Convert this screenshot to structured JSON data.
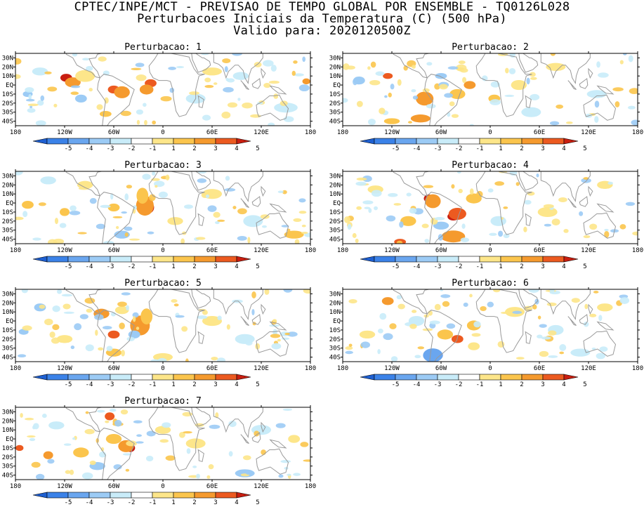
{
  "header": {
    "line1": "CPTEC/INPE/MCT - PREVISAO DE TEMPO GLOBAL POR ENSEMBLE - TQ0126L028",
    "line2": "Perturbacoes Iniciais da Temperatura (C) (500 hPa)",
    "line3": "Valido para: 2020120500Z"
  },
  "map_axes": {
    "lon_ticks": [
      "180",
      "120W",
      "60W",
      "0",
      "60E",
      "120E",
      "180"
    ],
    "lat_ticks": [
      "30N",
      "20N",
      "10N",
      "EQ",
      "10S",
      "20S",
      "30S",
      "40S"
    ]
  },
  "colorbar": {
    "labels": [
      "-5",
      "-4",
      "-3",
      "-2",
      "-1",
      "1",
      "2",
      "3",
      "4",
      "5"
    ],
    "colors": [
      "#1e5fd0",
      "#3b82e8",
      "#6aa6ef",
      "#9ccbf5",
      "#c9ecf9",
      "#ffffff",
      "#fde68a",
      "#fbc54d",
      "#f59a2e",
      "#ec5a20",
      "#c81e10"
    ]
  },
  "panels": [
    {
      "title": "Perturbacao: 1",
      "blobs": [
        [
          -118,
          8,
          6,
          4,
          "#c81e10"
        ],
        [
          -110,
          3,
          8,
          5,
          "#f59a2e"
        ],
        [
          -95,
          10,
          10,
          6,
          "#fde68a"
        ],
        [
          -60,
          -5,
          6,
          4,
          "#ec5a20"
        ],
        [
          -50,
          -8,
          8,
          6,
          "#f59a2e"
        ],
        [
          -15,
          2,
          6,
          4,
          "#ec5a20"
        ],
        [
          -20,
          -5,
          7,
          5,
          "#f59a2e"
        ],
        [
          -165,
          -10,
          5,
          3,
          "#9ccbf5"
        ],
        [
          -100,
          -15,
          6,
          4,
          "#9ccbf5"
        ],
        [
          175,
          4,
          4,
          3,
          "#f59a2e"
        ],
        [
          -70,
          -32,
          6,
          3,
          "#fbc54d"
        ],
        [
          40,
          -15,
          10,
          5,
          "#c9ecf9"
        ],
        [
          150,
          -25,
          12,
          5,
          "#c9ecf9"
        ],
        [
          -150,
          15,
          8,
          4,
          "#c9ecf9"
        ],
        [
          95,
          10,
          8,
          4,
          "#c9ecf9"
        ],
        [
          60,
          15,
          10,
          4,
          "#fde68a"
        ]
      ]
    },
    {
      "title": "Perturbacao: 2",
      "blobs": [
        [
          -125,
          10,
          5,
          3,
          "#ec5a20"
        ],
        [
          -80,
          -17,
          6,
          4,
          "#c81e10"
        ],
        [
          -80,
          -15,
          9,
          7,
          "#f59a2e"
        ],
        [
          -40,
          -10,
          8,
          5,
          "#fbc54d"
        ],
        [
          -25,
          0,
          6,
          4,
          "#f59a2e"
        ],
        [
          -85,
          -37,
          10,
          4,
          "#f59a2e"
        ],
        [
          -120,
          -40,
          8,
          3,
          "#fbc54d"
        ],
        [
          35,
          0,
          8,
          5,
          "#fde68a"
        ],
        [
          80,
          20,
          10,
          4,
          "#fde68a"
        ],
        [
          -160,
          5,
          6,
          4,
          "#9ccbf5"
        ],
        [
          50,
          -30,
          10,
          5,
          "#c9ecf9"
        ],
        [
          130,
          -10,
          10,
          4,
          "#c9ecf9"
        ],
        [
          -60,
          10,
          6,
          3,
          "#9ccbf5"
        ],
        [
          5,
          -15,
          6,
          4,
          "#fbc54d"
        ]
      ]
    },
    {
      "title": "Perturbacao: 3",
      "blobs": [
        [
          -18,
          -5,
          6,
          6,
          "#c81e10"
        ],
        [
          -22,
          -3,
          9,
          10,
          "#f59a2e"
        ],
        [
          -25,
          8,
          6,
          8,
          "#fbc54d"
        ],
        [
          -120,
          -10,
          5,
          4,
          "#fbc54d"
        ],
        [
          -165,
          -2,
          6,
          4,
          "#fbc54d"
        ],
        [
          -60,
          -5,
          6,
          4,
          "#fbc54d"
        ],
        [
          -50,
          -35,
          8,
          4,
          "#9ccbf5"
        ],
        [
          15,
          -20,
          8,
          4,
          "#fde68a"
        ],
        [
          60,
          10,
          10,
          5,
          "#fde68a"
        ],
        [
          -140,
          25,
          8,
          4,
          "#c9ecf9"
        ],
        [
          110,
          -20,
          10,
          6,
          "#c9ecf9"
        ],
        [
          160,
          -35,
          10,
          4,
          "#fbc54d"
        ],
        [
          -95,
          20,
          8,
          4,
          "#fde68a"
        ]
      ]
    },
    {
      "title": "Perturbacao: 4",
      "blobs": [
        [
          -75,
          5,
          5,
          4,
          "#c81e10"
        ],
        [
          -70,
          2,
          8,
          7,
          "#f59a2e"
        ],
        [
          -45,
          -15,
          6,
          4,
          "#c81e10"
        ],
        [
          -40,
          -12,
          9,
          6,
          "#ec5a20"
        ],
        [
          -50,
          -38,
          8,
          4,
          "#ec5a20"
        ],
        [
          -45,
          -37,
          12,
          6,
          "#f59a2e"
        ],
        [
          -110,
          -43,
          6,
          3,
          "#ec5a20"
        ],
        [
          -100,
          -20,
          8,
          5,
          "#fbc54d"
        ],
        [
          -140,
          15,
          8,
          4,
          "#fde68a"
        ],
        [
          -60,
          -25,
          8,
          4,
          "#9ccbf5"
        ],
        [
          10,
          -20,
          8,
          5,
          "#c9ecf9"
        ],
        [
          70,
          -10,
          10,
          5,
          "#fde68a"
        ],
        [
          140,
          20,
          8,
          4,
          "#fde68a"
        ],
        [
          -20,
          5,
          8,
          5,
          "#fbc54d"
        ]
      ]
    },
    {
      "title": "Perturbacao: 5",
      "blobs": [
        [
          -25,
          -8,
          6,
          6,
          "#c81e10"
        ],
        [
          -28,
          -5,
          10,
          10,
          "#f59a2e"
        ],
        [
          -20,
          5,
          6,
          8,
          "#fbc54d"
        ],
        [
          -60,
          -15,
          6,
          4,
          "#ec5a20"
        ],
        [
          -75,
          8,
          8,
          5,
          "#f59a2e"
        ],
        [
          -50,
          12,
          7,
          4,
          "#fde68a"
        ],
        [
          -35,
          -15,
          6,
          4,
          "#9ccbf5"
        ],
        [
          -150,
          15,
          6,
          4,
          "#9ccbf5"
        ],
        [
          -170,
          -12,
          5,
          3,
          "#9ccbf5"
        ],
        [
          -60,
          -35,
          8,
          4,
          "#fbc54d"
        ],
        [
          0,
          -40,
          10,
          4,
          "#fde68a"
        ],
        [
          60,
          0,
          10,
          5,
          "#fde68a"
        ],
        [
          100,
          -20,
          10,
          5,
          "#c9ecf9"
        ],
        [
          -120,
          -20,
          8,
          4,
          "#fde68a"
        ]
      ]
    },
    {
      "title": "Perturbacao: 6",
      "blobs": [
        [
          -65,
          -38,
          6,
          5,
          "#1e5fd0"
        ],
        [
          -70,
          -38,
          10,
          7,
          "#6aa6ef"
        ],
        [
          -40,
          -20,
          6,
          4,
          "#ec5a20"
        ],
        [
          -55,
          -15,
          8,
          5,
          "#fbc54d"
        ],
        [
          -125,
          22,
          6,
          4,
          "#f59a2e"
        ],
        [
          -20,
          -5,
          7,
          5,
          "#fbc54d"
        ],
        [
          -90,
          0,
          8,
          5,
          "#c9ecf9"
        ],
        [
          30,
          10,
          10,
          5,
          "#fde68a"
        ],
        [
          80,
          -10,
          8,
          5,
          "#c9ecf9"
        ],
        [
          140,
          15,
          8,
          4,
          "#fde68a"
        ],
        [
          -150,
          -15,
          8,
          4,
          "#fde68a"
        ],
        [
          110,
          -35,
          10,
          4,
          "#c9ecf9"
        ],
        [
          -20,
          -28,
          6,
          4,
          "#fde68a"
        ]
      ]
    },
    {
      "title": "Perturbacao: 7",
      "blobs": [
        [
          -40,
          -10,
          5,
          4,
          "#c81e10"
        ],
        [
          -45,
          -8,
          8,
          6,
          "#f59a2e"
        ],
        [
          -65,
          25,
          5,
          4,
          "#ec5a20"
        ],
        [
          -175,
          -10,
          4,
          3,
          "#ec5a20"
        ],
        [
          -140,
          -18,
          5,
          4,
          "#f59a2e"
        ],
        [
          -100,
          -15,
          8,
          5,
          "#fbc54d"
        ],
        [
          -60,
          0,
          8,
          5,
          "#fbc54d"
        ],
        [
          -80,
          -30,
          8,
          4,
          "#9ccbf5"
        ],
        [
          0,
          10,
          8,
          4,
          "#fde68a"
        ],
        [
          40,
          -5,
          10,
          5,
          "#fde68a"
        ],
        [
          120,
          10,
          10,
          5,
          "#c9ecf9"
        ],
        [
          100,
          -38,
          10,
          4,
          "#9ccbf5"
        ],
        [
          160,
          0,
          6,
          4,
          "#fde68a"
        ],
        [
          -130,
          15,
          8,
          4,
          "#c9ecf9"
        ]
      ]
    }
  ]
}
